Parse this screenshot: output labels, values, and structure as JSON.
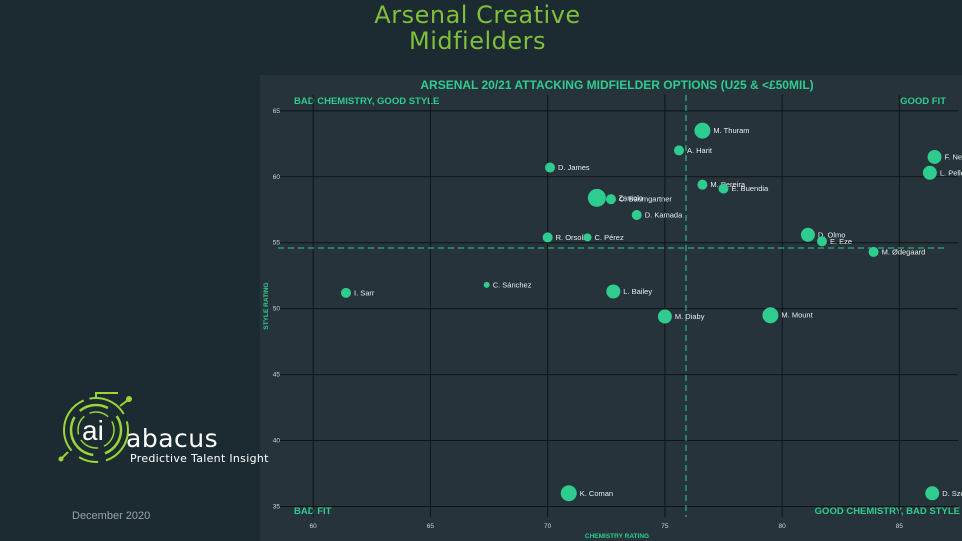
{
  "slide": {
    "title_line1": "Arsenal Creative",
    "title_line2": "Midfielders",
    "date": "December 2020"
  },
  "brand": {
    "logo_letters": "ai",
    "name": "abacus",
    "tagline": "Predictive Talent Insight",
    "logo_icon": "circuit-ring-icon"
  },
  "colors": {
    "background": "#1b2b31",
    "plot_background": "#26333a",
    "accent": "#2ecc8f",
    "title_green": "#7fbf3a",
    "logo_green": "#9ad53a"
  },
  "chart_data": {
    "type": "scatter",
    "title": "ARSENAL 20/21 ATTACKING MIDFIELDER OPTIONS (U25 & <£50MIL)",
    "xlabel": "CHEMISTRY RATING",
    "ylabel": "STYLE RATING",
    "xlim": [
      58.5,
      87.5
    ],
    "ylim": [
      34.2,
      66.2
    ],
    "xticks": [
      60,
      65,
      70,
      75,
      80,
      85
    ],
    "yticks": [
      35,
      40,
      45,
      50,
      55,
      60,
      65
    ],
    "grid": true,
    "reference_lines": {
      "x": 75.9,
      "y": 54.6
    },
    "quadrant_labels": {
      "top_left": "BAD CHEMISTRY, GOOD STYLE",
      "top_right": "GOOD FIT",
      "bottom_left": "BAD FIT",
      "bottom_right": "GOOD CHEMISTRY, BAD STYLE"
    },
    "points": [
      {
        "name": "M. Thuram",
        "x": 76.6,
        "y": 63.5,
        "size": "large"
      },
      {
        "name": "A. Harit",
        "x": 75.6,
        "y": 62.0,
        "size": "small"
      },
      {
        "name": "F. Neuhaus",
        "x": 86.5,
        "y": 61.5,
        "size": "medium"
      },
      {
        "name": "D. James",
        "x": 70.1,
        "y": 60.7,
        "size": "small"
      },
      {
        "name": "L. Pellegrini",
        "x": 86.3,
        "y": 60.3,
        "size": "medium"
      },
      {
        "name": "M. Pereira",
        "x": 76.6,
        "y": 59.4,
        "size": "small"
      },
      {
        "name": "E. Buendia",
        "x": 77.5,
        "y": 59.1,
        "size": "small"
      },
      {
        "name": "N. Zaniolo",
        "x": 72.1,
        "y": 58.4,
        "size": "xlarge"
      },
      {
        "name": "C. Baumgartner",
        "x": 72.7,
        "y": 58.3,
        "size": "small"
      },
      {
        "name": "D. Kamada",
        "x": 73.8,
        "y": 57.1,
        "size": "small"
      },
      {
        "name": "R. Orsolini",
        "x": 70.0,
        "y": 55.4,
        "size": "small"
      },
      {
        "name": "C. Pérez",
        "x": 71.7,
        "y": 55.4,
        "size": "tiny"
      },
      {
        "name": "D. Olmo",
        "x": 81.1,
        "y": 55.6,
        "size": "medium"
      },
      {
        "name": "E. Eze",
        "x": 81.7,
        "y": 55.1,
        "size": "small"
      },
      {
        "name": "M. Ødegaard",
        "x": 83.9,
        "y": 54.3,
        "size": "small"
      },
      {
        "name": "C. Sánchez",
        "x": 67.4,
        "y": 51.8,
        "size": "dot"
      },
      {
        "name": "I. Sarr",
        "x": 61.4,
        "y": 51.2,
        "size": "small"
      },
      {
        "name": "L. Bailey",
        "x": 72.8,
        "y": 51.3,
        "size": "medium"
      },
      {
        "name": "M. Diaby",
        "x": 75.0,
        "y": 49.4,
        "size": "medium"
      },
      {
        "name": "M. Mount",
        "x": 79.5,
        "y": 49.5,
        "size": "large"
      },
      {
        "name": "K. Coman",
        "x": 70.9,
        "y": 36.0,
        "size": "large"
      },
      {
        "name": "D. Szoboszlai",
        "x": 86.4,
        "y": 36.0,
        "size": "medium"
      }
    ]
  }
}
